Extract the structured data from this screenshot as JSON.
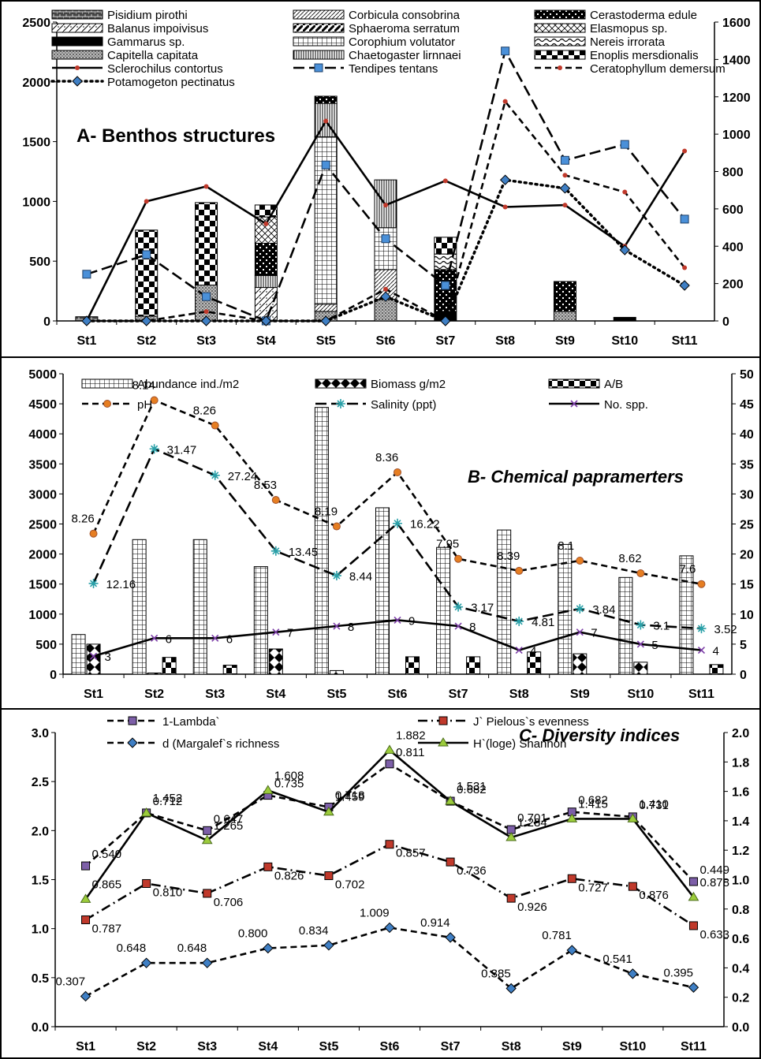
{
  "figure_title": "",
  "chart_data": [
    {
      "type": "bar",
      "panel_label": "A- Benthos structures",
      "categories": [
        "St1",
        "St2",
        "St3",
        "St4",
        "St5",
        "St6",
        "St7",
        "St8",
        "St9",
        "St10",
        "St11"
      ],
      "y_left": {
        "min": 0,
        "max": 2500,
        "ticks": [
          0,
          500,
          1000,
          1500,
          2000,
          2500
        ]
      },
      "y_right": {
        "min": 0,
        "max": 1600,
        "ticks": [
          0,
          200,
          400,
          600,
          800,
          1000,
          1200,
          1400,
          1600
        ]
      },
      "stack_series": [
        {
          "name": "Pisidium pirothi",
          "pattern": "brick",
          "values": [
            35,
            0,
            0,
            0,
            0,
            0,
            0,
            0,
            0,
            0,
            0
          ]
        },
        {
          "name": "Balanus impoivisus",
          "pattern": "diag",
          "values": [
            0,
            0,
            0,
            280,
            0,
            0,
            0,
            0,
            0,
            0,
            0
          ]
        },
        {
          "name": "Gammarus sp.",
          "pattern": "solid",
          "values": [
            0,
            0,
            0,
            0,
            0,
            0,
            80,
            0,
            0,
            30,
            0
          ]
        },
        {
          "name": "Capitella capitata",
          "pattern": "dots",
          "values": [
            0,
            40,
            300,
            0,
            80,
            180,
            0,
            0,
            80,
            0,
            0
          ]
        },
        {
          "name": "Corbicula consobrina",
          "pattern": "lightdiag",
          "values": [
            0,
            0,
            0,
            0,
            60,
            250,
            0,
            0,
            0,
            0,
            0
          ]
        },
        {
          "name": "Sphaeroma serratum",
          "pattern": "boldiag",
          "values": [
            0,
            0,
            0,
            0,
            0,
            0,
            0,
            0,
            0,
            0,
            0
          ]
        },
        {
          "name": "Corophium volutator",
          "pattern": "grid",
          "values": [
            0,
            0,
            0,
            0,
            1400,
            350,
            0,
            0,
            0,
            0,
            0
          ]
        },
        {
          "name": "Chaetogaster lirnnaei",
          "pattern": "vlines",
          "values": [
            0,
            0,
            0,
            100,
            280,
            400,
            0,
            0,
            0,
            0,
            0
          ]
        },
        {
          "name": "Cerastoderma edule",
          "pattern": "darkcheck",
          "values": [
            0,
            0,
            0,
            270,
            60,
            0,
            350,
            0,
            250,
            0,
            0
          ]
        },
        {
          "name": "Elasmopus sp.",
          "pattern": "crossdiag",
          "values": [
            0,
            0,
            0,
            220,
            0,
            0,
            0,
            0,
            0,
            0,
            0
          ]
        },
        {
          "name": "Nereis irrorata",
          "pattern": "wave",
          "values": [
            0,
            0,
            0,
            0,
            0,
            0,
            130,
            0,
            0,
            0,
            0
          ]
        },
        {
          "name": "Enoplis mersdionalis",
          "pattern": "check",
          "values": [
            0,
            720,
            690,
            100,
            0,
            0,
            140,
            0,
            0,
            0,
            0
          ]
        }
      ],
      "line_series": [
        {
          "name": "Sclerochilus contortus",
          "axis": "right",
          "style": "solid",
          "marker": "red-dot",
          "values": [
            0,
            640,
            720,
            520,
            1070,
            620,
            750,
            610,
            620,
            400,
            910
          ]
        },
        {
          "name": "Tendipes tentans",
          "axis": "right",
          "style": "longdash",
          "marker": "blue-square",
          "values": [
            250,
            355,
            130,
            0,
            835,
            440,
            190,
            1445,
            860,
            945,
            545
          ]
        },
        {
          "name": "Ceratophyllum demersum",
          "axis": "right",
          "style": "dash",
          "marker": "red-dot",
          "values": [
            0,
            0,
            50,
            0,
            0,
            170,
            0,
            1175,
            780,
            690,
            285
          ]
        },
        {
          "name": "Potamogeton pectinatus",
          "axis": "right",
          "style": "dotted",
          "marker": "blue-diamond",
          "values": [
            0,
            0,
            0,
            0,
            0,
            130,
            0,
            755,
            710,
            380,
            190
          ]
        }
      ]
    },
    {
      "type": "bar",
      "panel_label": "B- Chemical papramerters",
      "categories": [
        "St1",
        "St2",
        "St3",
        "St4",
        "St5",
        "St6",
        "St7",
        "St8",
        "St9",
        "St10",
        "St11"
      ],
      "y_left": {
        "min": 0,
        "max": 5000,
        "ticks": [
          0,
          500,
          1000,
          1500,
          2000,
          2500,
          3000,
          3500,
          4000,
          4500,
          5000
        ]
      },
      "y_right": {
        "min": 0,
        "max": 50,
        "ticks": [
          0,
          5,
          10,
          15,
          20,
          25,
          30,
          35,
          40,
          45,
          50
        ]
      },
      "bar_series": [
        {
          "name": "Abundance ind./m2",
          "pattern": "grid",
          "values": [
            660,
            2240,
            2240,
            1790,
            4440,
            2770,
            2110,
            2400,
            2160,
            1610,
            1970
          ]
        },
        {
          "name": "Biomass g/m2",
          "pattern": "diamond",
          "values": [
            500,
            20,
            0,
            420,
            60,
            0,
            0,
            0,
            340,
            200,
            0
          ]
        },
        {
          "name": "A/B",
          "pattern": "check",
          "values": [
            0,
            280,
            150,
            0,
            0,
            290,
            290,
            370,
            0,
            0,
            160
          ]
        }
      ],
      "line_series": [
        {
          "name": "pH",
          "axis": "right",
          "style": "dash",
          "marker": "orange-dot",
          "values": [
            23.4,
            45.6,
            41.4,
            29,
            24.6,
            33.6,
            19.2,
            17.2,
            18.9,
            16.8,
            15
          ],
          "labels": [
            "8.26",
            "8.14",
            "8.26",
            "8.53",
            "8.19",
            "8.36",
            "7.95",
            "8.39",
            "8.1",
            "8.62",
            "7.6"
          ]
        },
        {
          "name": "Salinity (ppt)",
          "axis": "right",
          "style": "longdash",
          "marker": "teal-star",
          "values": [
            15.1,
            37.5,
            33.1,
            20.5,
            16.4,
            25.1,
            11.2,
            8.8,
            10.9,
            8.2,
            7.6
          ],
          "labels": [
            "12.16",
            "31.47",
            "27.24",
            "13.45",
            "8.44",
            "16.22",
            "3.17",
            "4.81",
            "3.84",
            "3.1",
            "3.52"
          ]
        },
        {
          "name": "No. spp.",
          "axis": "right",
          "style": "solid",
          "marker": "purple-x",
          "values": [
            3,
            6,
            6,
            7,
            8,
            9,
            8,
            4,
            7,
            5,
            4
          ],
          "labels": [
            "3",
            "6",
            "6",
            "7",
            "8",
            "9",
            "8",
            "4",
            "7",
            "5",
            "4"
          ]
        }
      ]
    },
    {
      "type": "line",
      "panel_label": "C- Diversity indices",
      "categories": [
        "St1",
        "St2",
        "St3",
        "St4",
        "St5",
        "St6",
        "St7",
        "St8",
        "St9",
        "St10",
        "St11"
      ],
      "y_left": {
        "min": 0,
        "max": 3,
        "ticks": [
          "0.0",
          "0.5",
          "1.0",
          "1.5",
          "2.0",
          "2.5",
          "3.0"
        ]
      },
      "y_right": {
        "min": 0,
        "max": 2,
        "ticks": [
          "0.0",
          "0.2",
          "0.4",
          "0.6",
          "0.8",
          "1.0",
          "1.2",
          "1.4",
          "1.6",
          "1.8",
          "2.0"
        ]
      },
      "line_series": [
        {
          "name": "1-Lambda`",
          "axis": "left",
          "style": "dash",
          "marker": "purple-square",
          "values": [
            1.64,
            2.18,
            2.0,
            2.36,
            2.24,
            2.68,
            2.3,
            2.01,
            2.19,
            2.14,
            1.48
          ],
          "labels": [
            "0.540",
            "0.712",
            "0.647",
            "0.735",
            "0.718",
            "0.811",
            "0.682",
            "0.701",
            "0.682",
            "0.731",
            "0.449"
          ]
        },
        {
          "name": "J` Pielous`s evenness",
          "axis": "left",
          "style": "dashdot",
          "marker": "red-square",
          "values": [
            1.09,
            1.46,
            1.36,
            1.63,
            1.54,
            1.86,
            1.68,
            1.31,
            1.51,
            1.43,
            1.03
          ],
          "labels": [
            "0.787",
            "0.810",
            "0.706",
            "0.826",
            "0.702",
            "0.857",
            "0.736",
            "0.926",
            "0.727",
            "0.876",
            "0.633"
          ]
        },
        {
          "name": "d (Margalef`s richness",
          "axis": "left",
          "style": "dash",
          "marker": "blue-diamond",
          "values": [
            0.31,
            0.65,
            0.65,
            0.8,
            0.83,
            1.01,
            0.91,
            0.39,
            0.78,
            0.54,
            0.4
          ],
          "labels": [
            "0.307",
            "0.648",
            "0.648",
            "0.800",
            "0.834",
            "1.009",
            "0.914",
            "0.385",
            "0.781",
            "0.541",
            "0.395"
          ]
        },
        {
          "name": "H`(loge) Shannon",
          "axis": "left",
          "style": "solid",
          "marker": "green-triangle",
          "values": [
            1.3,
            2.18,
            1.9,
            2.41,
            2.19,
            2.82,
            2.3,
            1.93,
            2.12,
            2.12,
            1.32
          ],
          "labels": [
            "0.865",
            "1.452",
            "1.265",
            "1.608",
            "1.459",
            "1.882",
            "1.531",
            "1.284",
            "1.415",
            "1.410",
            "0.878"
          ]
        }
      ]
    }
  ]
}
